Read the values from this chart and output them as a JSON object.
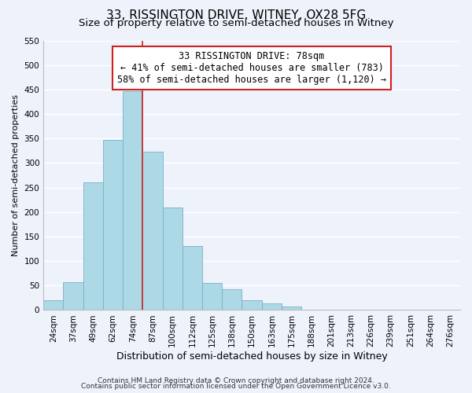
{
  "title": "33, RISSINGTON DRIVE, WITNEY, OX28 5FG",
  "subtitle": "Size of property relative to semi-detached houses in Witney",
  "xlabel": "Distribution of semi-detached houses by size in Witney",
  "ylabel": "Number of semi-detached properties",
  "bar_labels": [
    "24sqm",
    "37sqm",
    "49sqm",
    "62sqm",
    "74sqm",
    "87sqm",
    "100sqm",
    "112sqm",
    "125sqm",
    "138sqm",
    "150sqm",
    "163sqm",
    "175sqm",
    "188sqm",
    "201sqm",
    "213sqm",
    "226sqm",
    "239sqm",
    "251sqm",
    "264sqm",
    "276sqm"
  ],
  "bar_values": [
    20,
    57,
    260,
    347,
    447,
    323,
    209,
    130,
    55,
    42,
    20,
    13,
    7,
    0,
    0,
    0,
    0,
    0,
    0,
    0,
    0
  ],
  "bar_color": "#add8e6",
  "bar_edge_color": "#7ab0c8",
  "highlight_bar_index": 4,
  "highlight_line_color": "#cc2222",
  "annotation_line1": "33 RISSINGTON DRIVE: 78sqm",
  "annotation_line2": "← 41% of semi-detached houses are smaller (783)",
  "annotation_line3": "58% of semi-detached houses are larger (1,120) →",
  "annotation_box_color": "white",
  "annotation_box_edge_color": "#cc2222",
  "ylim": [
    0,
    550
  ],
  "yticks": [
    0,
    50,
    100,
    150,
    200,
    250,
    300,
    350,
    400,
    450,
    500,
    550
  ],
  "footer_line1": "Contains HM Land Registry data © Crown copyright and database right 2024.",
  "footer_line2": "Contains public sector information licensed under the Open Government Licence v3.0.",
  "background_color": "#eef2fb",
  "grid_color": "white",
  "title_fontsize": 11,
  "subtitle_fontsize": 9.5,
  "xlabel_fontsize": 9,
  "ylabel_fontsize": 8,
  "tick_fontsize": 7.5,
  "annotation_fontsize": 8.5,
  "footer_fontsize": 6.5
}
